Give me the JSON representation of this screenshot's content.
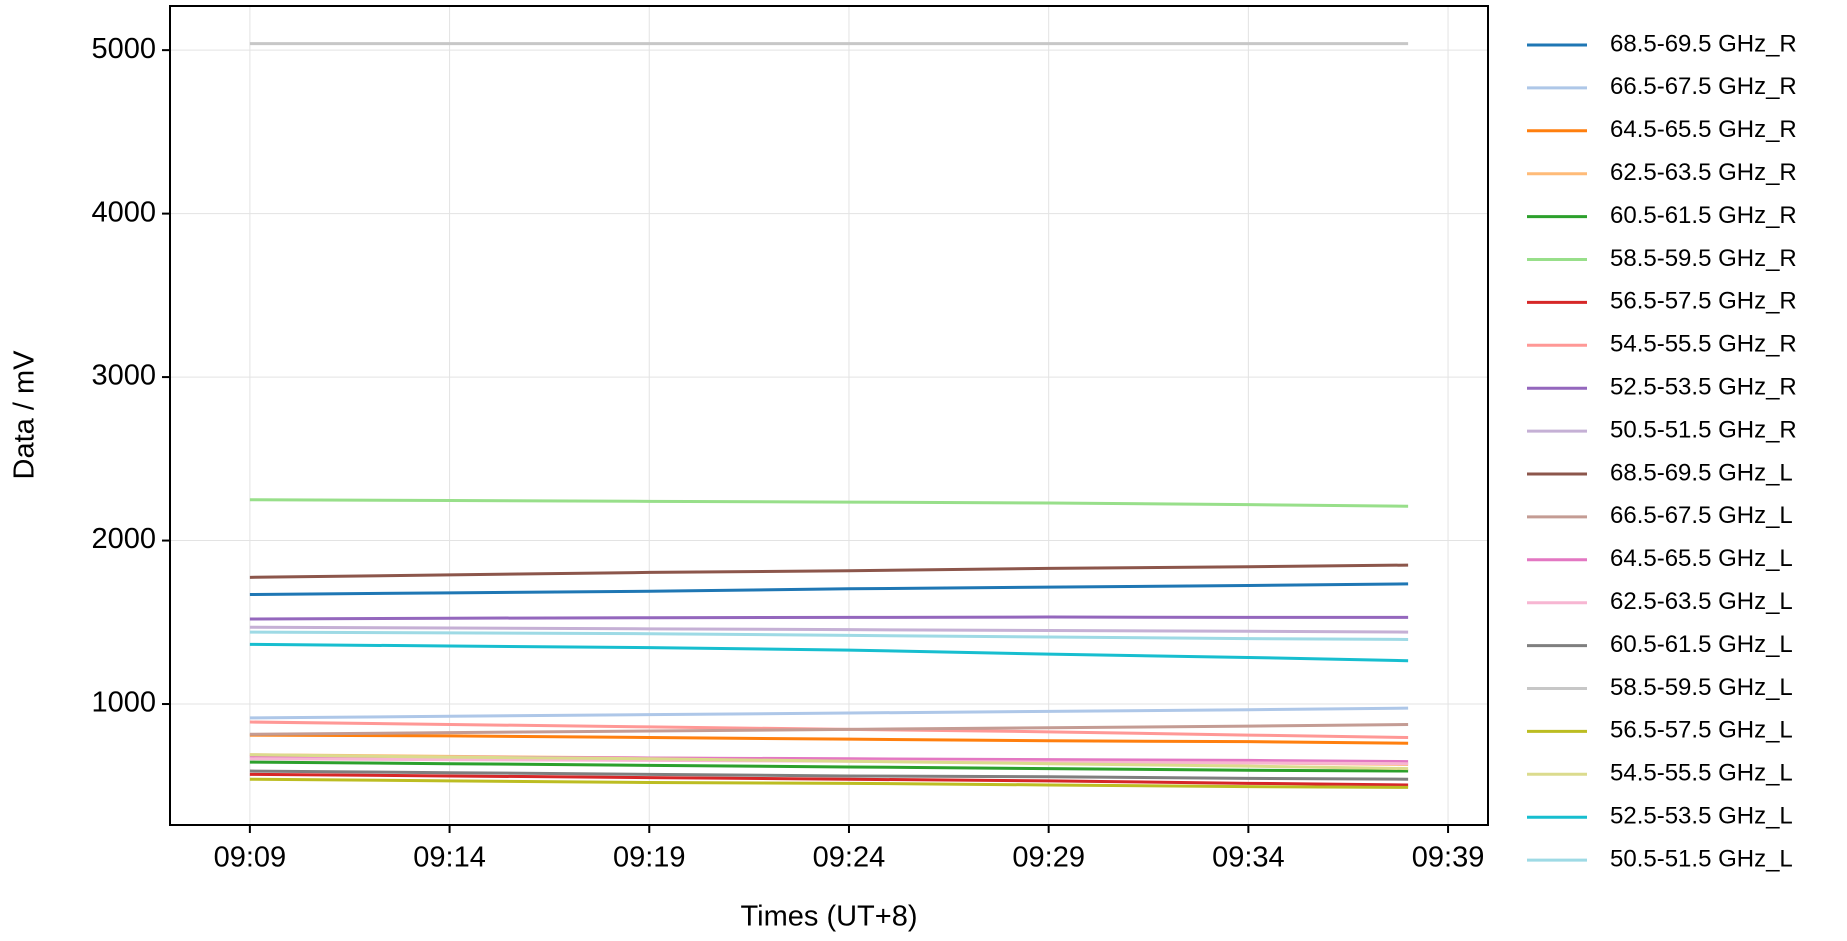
{
  "chart_data": {
    "type": "line",
    "x_label": "Times (UT+8)",
    "y_label": "Data / mV",
    "x": [
      "09:09",
      "09:14",
      "09:19",
      "09:24",
      "09:29",
      "09:34",
      "09:38"
    ],
    "xlim": [
      "09:07",
      "09:40"
    ],
    "xticks": [
      "09:09",
      "09:14",
      "09:19",
      "09:24",
      "09:29",
      "09:34",
      "09:39"
    ],
    "ylim": [
      260,
      5270
    ],
    "yticks": [
      1000,
      2000,
      3000,
      4000,
      5000
    ],
    "grid": true,
    "legend": "outside-right",
    "series": [
      {
        "name": "68.5-69.5 GHz_R",
        "color": "#1f77b4",
        "values": [
          1670,
          1680,
          1690,
          1705,
          1715,
          1725,
          1735
        ]
      },
      {
        "name": "66.5-67.5 GHz_R",
        "color": "#aec7e8",
        "values": [
          915,
          925,
          935,
          945,
          955,
          965,
          975
        ]
      },
      {
        "name": "64.5-65.5 GHz_R",
        "color": "#ff7f0e",
        "values": [
          810,
          805,
          795,
          785,
          775,
          770,
          760
        ]
      },
      {
        "name": "62.5-63.5 GHz_R",
        "color": "#ffbb78",
        "values": [
          690,
          680,
          670,
          660,
          650,
          640,
          630
        ]
      },
      {
        "name": "60.5-61.5 GHz_R",
        "color": "#2ca02c",
        "values": [
          645,
          635,
          625,
          615,
          605,
          595,
          590
        ]
      },
      {
        "name": "58.5-59.5 GHz_R",
        "color": "#98df8a",
        "values": [
          2250,
          2245,
          2240,
          2235,
          2230,
          2220,
          2210
        ]
      },
      {
        "name": "56.5-57.5 GHz_R",
        "color": "#d62728",
        "values": [
          570,
          560,
          550,
          540,
          530,
          515,
          505
        ]
      },
      {
        "name": "54.5-55.5 GHz_R",
        "color": "#ff9896",
        "values": [
          890,
          875,
          860,
          845,
          830,
          810,
          795
        ]
      },
      {
        "name": "52.5-53.5 GHz_R",
        "color": "#9467bd",
        "values": [
          1520,
          1525,
          1528,
          1530,
          1532,
          1530,
          1530
        ]
      },
      {
        "name": "50.5-51.5 GHz_R",
        "color": "#c5b0d5",
        "values": [
          1470,
          1465,
          1460,
          1455,
          1450,
          1445,
          1440
        ]
      },
      {
        "name": "68.5-69.5 GHz_L",
        "color": "#8c564b",
        "values": [
          1775,
          1790,
          1805,
          1815,
          1830,
          1840,
          1850
        ]
      },
      {
        "name": "66.5-67.5 GHz_L",
        "color": "#c49c94",
        "values": [
          815,
          825,
          835,
          845,
          855,
          865,
          875
        ]
      },
      {
        "name": "64.5-65.5 GHz_L",
        "color": "#e377c2",
        "values": [
          680,
          675,
          670,
          665,
          660,
          655,
          648
        ]
      },
      {
        "name": "62.5-63.5 GHz_L",
        "color": "#f7b6d2",
        "values": [
          665,
          660,
          655,
          650,
          645,
          640,
          635
        ]
      },
      {
        "name": "60.5-61.5 GHz_L",
        "color": "#7f7f7f",
        "values": [
          590,
          580,
          570,
          560,
          555,
          545,
          540
        ]
      },
      {
        "name": "58.5-59.5 GHz_L",
        "color": "#c7c7c7",
        "values": [
          5040,
          5040,
          5040,
          5040,
          5040,
          5040,
          5040
        ]
      },
      {
        "name": "56.5-57.5 GHz_L",
        "color": "#bcbd22",
        "values": [
          540,
          530,
          520,
          515,
          505,
          495,
          490
        ]
      },
      {
        "name": "54.5-55.5 GHz_L",
        "color": "#dbdb8d",
        "values": [
          690,
          675,
          665,
          650,
          635,
          620,
          605
        ]
      },
      {
        "name": "52.5-53.5 GHz_L",
        "color": "#17becf",
        "values": [
          1365,
          1355,
          1345,
          1330,
          1305,
          1285,
          1265
        ]
      },
      {
        "name": "50.5-51.5 GHz_L",
        "color": "#9edae5",
        "values": [
          1440,
          1435,
          1430,
          1420,
          1410,
          1400,
          1395
        ]
      }
    ]
  }
}
